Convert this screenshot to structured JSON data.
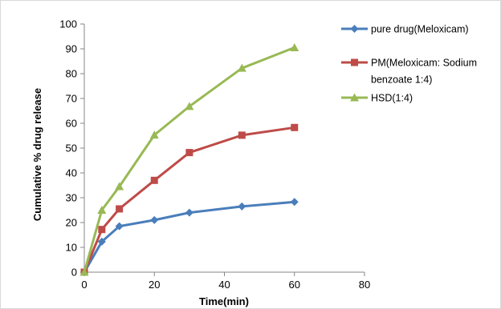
{
  "chart_data": {
    "type": "line",
    "xlabel": "Time(min)",
    "ylabel": "Cumulative % drug release",
    "xlim": [
      0,
      80
    ],
    "ylim": [
      0,
      100
    ],
    "xticks": [
      0,
      20,
      40,
      60,
      80
    ],
    "yticks": [
      0,
      10,
      20,
      30,
      40,
      50,
      60,
      70,
      80,
      90,
      100
    ],
    "grid": false,
    "legend_position": "right",
    "series": [
      {
        "name": "pure drug(Meloxicam)",
        "legend_lines": [
          "pure drug(Meloxicam)"
        ],
        "color": "#4a7ebb",
        "marker": "diamond",
        "x": [
          0,
          5,
          10,
          20,
          30,
          45,
          60
        ],
        "y": [
          0,
          12.3,
          18.5,
          21.0,
          24.0,
          26.5,
          28.3
        ]
      },
      {
        "name": "PM(Meloxicam: Sodium benzoate 1:4)",
        "legend_lines": [
          "PM(Meloxicam: Sodium",
          "benzoate 1:4)"
        ],
        "color": "#be4b48",
        "marker": "square",
        "x": [
          0,
          5,
          10,
          20,
          30,
          45,
          60
        ],
        "y": [
          0,
          17.2,
          25.5,
          37.0,
          48.2,
          55.2,
          58.3
        ]
      },
      {
        "name": "HSD(1:4)",
        "legend_lines": [
          "HSD(1:4)"
        ],
        "color": "#98b954",
        "marker": "triangle",
        "x": [
          0,
          5,
          10,
          20,
          30,
          45,
          60
        ],
        "y": [
          0,
          25.0,
          34.5,
          55.3,
          66.8,
          82.2,
          90.5
        ]
      }
    ]
  }
}
